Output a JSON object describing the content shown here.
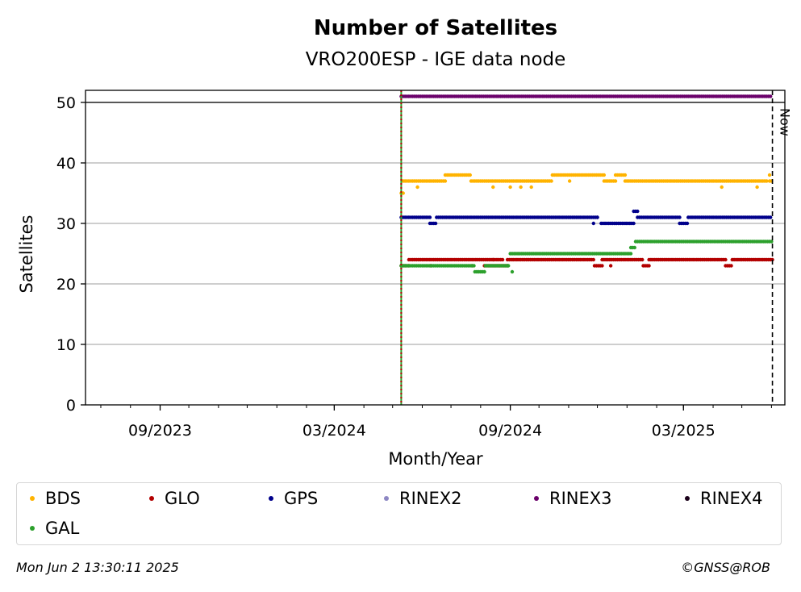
{
  "chart_data": {
    "type": "scatter",
    "title": "Number of Satellites",
    "subtitle": "VRO200ESP - IGE data node",
    "xlabel": "Month/Year",
    "ylabel": "Satellites",
    "x_ticks": [
      "09/2023",
      "03/2024",
      "09/2024",
      "03/2025"
    ],
    "x_range": [
      "2023-06-15",
      "2025-06-15"
    ],
    "ylim": [
      0,
      52
    ],
    "y_ticks": [
      0,
      10,
      20,
      30,
      40,
      50
    ],
    "grid": "horizontal",
    "data_start": "2024-05-10",
    "now_date": "2025-06-02",
    "now_label": "Now",
    "series": [
      {
        "name": "BDS",
        "color": "#ffb300",
        "segments": [
          [
            "2024-05-10",
            "2024-05-11",
            35
          ],
          [
            "2024-05-12",
            "2024-06-25",
            37
          ],
          [
            "2024-06-25",
            "2024-07-22",
            38
          ],
          [
            "2024-07-22",
            "2024-10-15",
            37
          ],
          [
            "2024-10-15",
            "2024-12-08",
            38
          ],
          [
            "2024-12-08",
            "2024-12-20",
            37
          ],
          [
            "2024-12-20",
            "2024-12-30",
            38
          ],
          [
            "2024-12-30",
            "2025-05-28",
            37
          ],
          [
            "2025-05-30",
            "2025-06-01",
            37
          ]
        ],
        "outliers": [
          [
            "2024-05-12",
            35
          ],
          [
            "2024-05-27",
            36
          ],
          [
            "2024-08-14",
            36
          ],
          [
            "2024-09-01",
            36
          ],
          [
            "2024-09-12",
            36
          ],
          [
            "2024-09-23",
            36
          ],
          [
            "2024-11-02",
            37
          ],
          [
            "2025-04-10",
            36
          ],
          [
            "2025-05-17",
            36
          ],
          [
            "2025-05-30",
            38
          ]
        ]
      },
      {
        "name": "GLO",
        "color": "#b30000",
        "segments": [
          [
            "2024-05-10",
            "2024-05-18",
            23
          ],
          [
            "2024-05-18",
            "2024-08-25",
            24
          ],
          [
            "2024-08-05",
            "2024-08-29",
            23
          ],
          [
            "2024-08-29",
            "2024-11-28",
            24
          ],
          [
            "2024-11-28",
            "2024-12-06",
            23
          ],
          [
            "2024-12-06",
            "2025-01-18",
            24
          ],
          [
            "2025-01-18",
            "2025-01-24",
            23
          ],
          [
            "2025-01-24",
            "2025-04-14",
            24
          ],
          [
            "2025-04-14",
            "2025-04-21",
            23
          ],
          [
            "2025-04-21",
            "2025-06-01",
            24
          ]
        ],
        "outliers": [
          [
            "2024-06-10",
            23
          ],
          [
            "2024-07-23",
            23
          ],
          [
            "2024-08-14",
            24
          ],
          [
            "2024-12-15",
            23
          ],
          [
            "2025-06-02",
            24
          ]
        ]
      },
      {
        "name": "GPS",
        "color": "#00008b",
        "segments": [
          [
            "2024-05-10",
            "2024-06-09",
            31
          ],
          [
            "2024-06-09",
            "2024-06-16",
            30
          ],
          [
            "2024-06-16",
            "2024-12-01",
            31
          ],
          [
            "2024-12-05",
            "2025-01-08",
            30
          ],
          [
            "2025-01-08",
            "2025-01-12",
            32
          ],
          [
            "2025-01-12",
            "2025-02-25",
            31
          ],
          [
            "2025-02-25",
            "2025-03-06",
            30
          ],
          [
            "2025-03-06",
            "2025-06-01",
            31
          ]
        ],
        "outliers": [
          [
            "2024-11-27",
            30
          ],
          [
            "2024-12-01",
            31
          ]
        ]
      },
      {
        "name": "RINEX2",
        "color": "#8d87c3",
        "segments": []
      },
      {
        "name": "RINEX3",
        "color": "#6a006a",
        "segments": [
          [
            "2024-05-10",
            "2025-06-01",
            51
          ]
        ]
      },
      {
        "name": "RINEX4",
        "color": "#1a0019",
        "segments": []
      },
      {
        "name": "GAL",
        "color": "#2ca02c",
        "segments": [
          [
            "2024-05-10",
            "2024-07-26",
            23
          ],
          [
            "2024-07-26",
            "2024-08-06",
            22
          ],
          [
            "2024-08-06",
            "2024-08-30",
            23
          ],
          [
            "2024-09-01",
            "2025-01-05",
            25
          ],
          [
            "2025-01-05",
            "2025-01-10",
            26
          ],
          [
            "2025-01-10",
            "2025-06-01",
            27
          ]
        ],
        "outliers": [
          [
            "2024-09-03",
            22
          ],
          [
            "2024-08-29",
            23
          ]
        ]
      }
    ]
  },
  "legend": {
    "items": [
      {
        "label": "BDS",
        "color": "#ffb300"
      },
      {
        "label": "GLO",
        "color": "#b30000"
      },
      {
        "label": "GPS",
        "color": "#00008b"
      },
      {
        "label": "RINEX2",
        "color": "#8d87c3"
      },
      {
        "label": "RINEX3",
        "color": "#6a006a"
      },
      {
        "label": "RINEX4",
        "color": "#1a0019"
      },
      {
        "label": "GAL",
        "color": "#2ca02c"
      }
    ]
  },
  "footer": {
    "timestamp": "Mon Jun  2 13:30:11 2025",
    "copyright": "©GNSS@ROB"
  }
}
